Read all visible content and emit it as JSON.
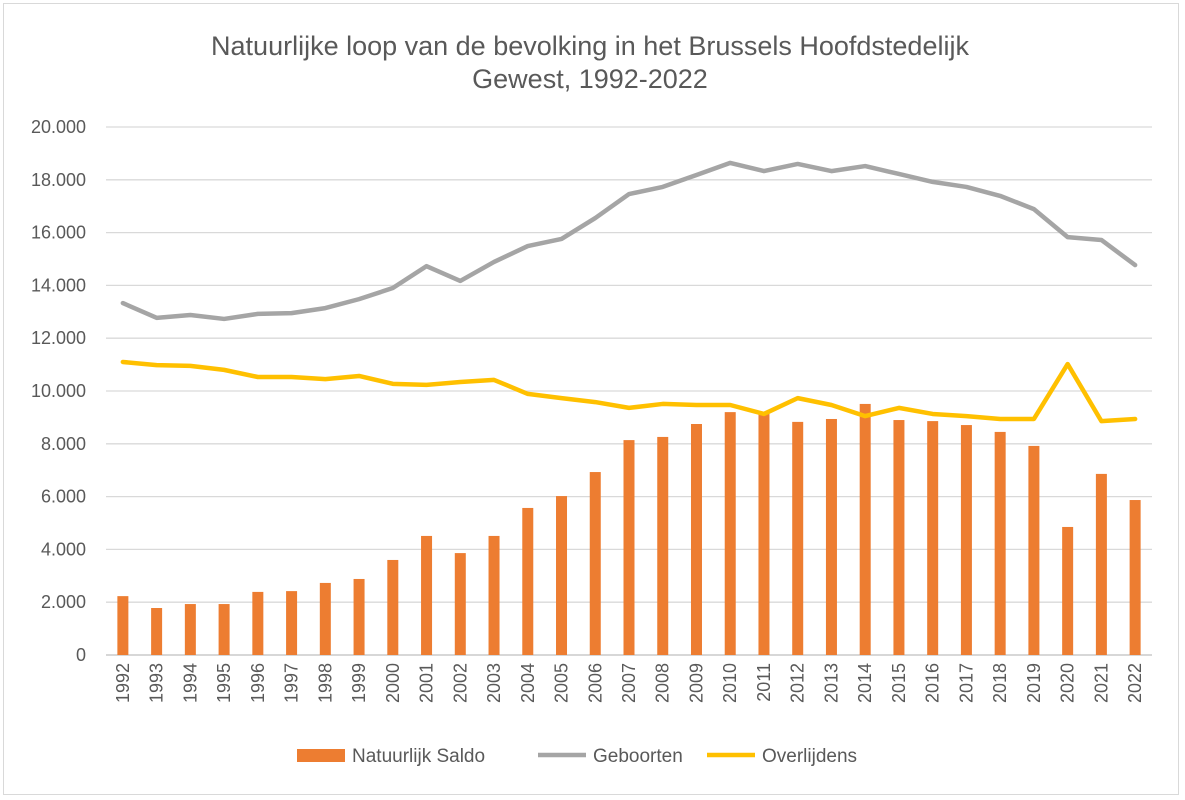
{
  "chart_data": {
    "type": "bar+line",
    "title_lines": [
      "Natuurlijke loop van de bevolking in het Brussels Hoofdstedelijk",
      "Gewest, 1992-2022"
    ],
    "xlabel": "",
    "ylabel": "",
    "ylim": [
      0,
      20000
    ],
    "yticks": [
      0,
      2000,
      4000,
      6000,
      8000,
      10000,
      12000,
      14000,
      16000,
      18000,
      20000
    ],
    "ytick_labels": [
      "0",
      "2.000",
      "4.000",
      "6.000",
      "8.000",
      "10.000",
      "12.000",
      "14.000",
      "16.000",
      "18.000",
      "20.000"
    ],
    "grid": true,
    "legend_position": "bottom",
    "categories": [
      "1992",
      "1993",
      "1994",
      "1995",
      "1996",
      "1997",
      "1998",
      "1999",
      "2000",
      "2001",
      "2002",
      "2003",
      "2004",
      "2005",
      "2006",
      "2007",
      "2008",
      "2009",
      "2010",
      "2011",
      "2012",
      "2013",
      "2014",
      "2015",
      "2016",
      "2017",
      "2018",
      "2019",
      "2020",
      "2021",
      "2022"
    ],
    "series": [
      {
        "name": "Natuurlijk Saldo",
        "kind": "bar",
        "color": "#ED7D31",
        "values": [
          2230,
          1780,
          1930,
          1930,
          2390,
          2420,
          2730,
          2880,
          3600,
          4510,
          3860,
          4510,
          5570,
          6020,
          6930,
          8140,
          8260,
          8750,
          9200,
          9150,
          8830,
          8940,
          9510,
          8900,
          8860,
          8710,
          8450,
          7920,
          4850,
          6860,
          5870
        ]
      },
      {
        "name": "Geboorten",
        "kind": "line",
        "color": "#A5A5A5",
        "values": [
          13330,
          12770,
          12880,
          12730,
          12920,
          12950,
          13140,
          13480,
          13900,
          14730,
          14170,
          14890,
          15490,
          15760,
          16550,
          17460,
          17730,
          18180,
          18640,
          18330,
          18600,
          18330,
          18520,
          18220,
          17920,
          17730,
          17390,
          16890,
          15830,
          15720,
          14770
        ]
      },
      {
        "name": "Overlijdens",
        "kind": "line",
        "color": "#FFC000",
        "values": [
          11100,
          10980,
          10950,
          10800,
          10530,
          10530,
          10450,
          10570,
          10270,
          10230,
          10340,
          10420,
          9890,
          9730,
          9580,
          9360,
          9510,
          9470,
          9470,
          9130,
          9730,
          9470,
          9050,
          9360,
          9130,
          9050,
          8940,
          8940,
          11020,
          8860,
          8940
        ]
      }
    ]
  }
}
